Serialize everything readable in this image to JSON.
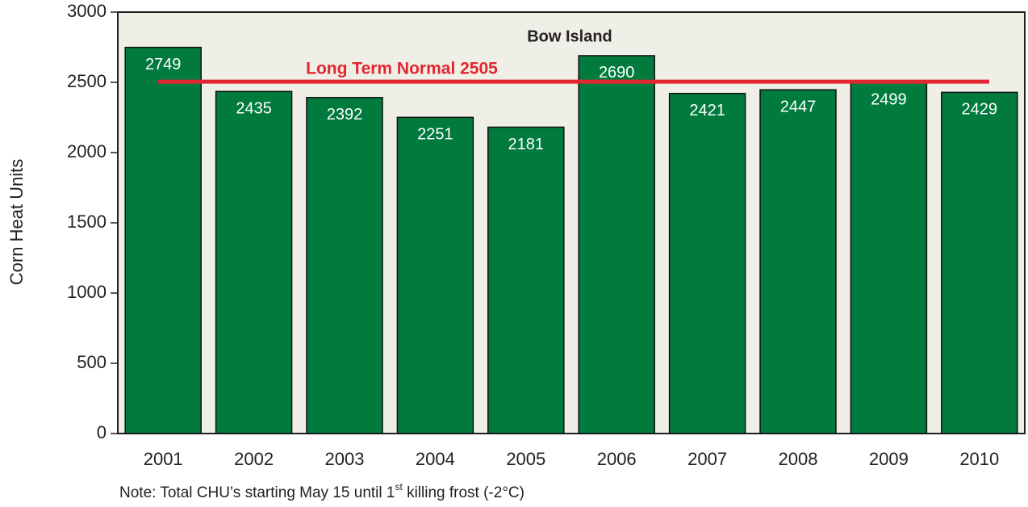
{
  "chart_data": {
    "type": "bar",
    "title": "Bow Island",
    "y_label": "Corn Heat Units",
    "categories": [
      "2001",
      "2002",
      "2003",
      "2004",
      "2005",
      "2006",
      "2007",
      "2008",
      "2009",
      "2010"
    ],
    "values": [
      2749,
      2435,
      2392,
      2251,
      2181,
      2690,
      2421,
      2447,
      2499,
      2429
    ],
    "color": "#007a3d",
    "background": "#efefe7",
    "ylim": [
      0,
      3000
    ],
    "yticks": [
      0,
      500,
      1000,
      1500,
      2000,
      2500,
      3000
    ],
    "grid": false,
    "reference_line": {
      "label": "Long Term Normal 2505",
      "value": 2505,
      "color": "#e3262f"
    },
    "note": [
      "Note: Total CHU’s starting May 15 until 1",
      "st",
      " killing frost (-2°C)"
    ]
  }
}
